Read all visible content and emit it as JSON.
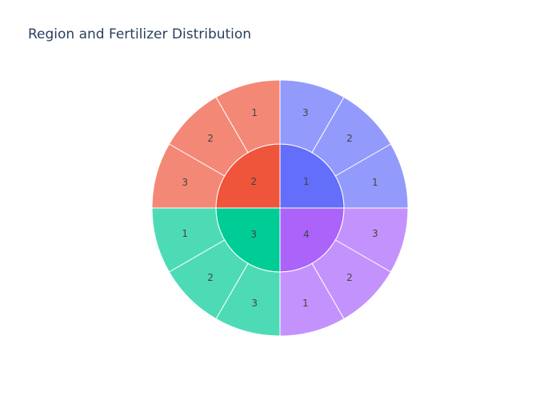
{
  "chart_data": {
    "type": "sunburst",
    "title": "Region and Fertilizer Distribution",
    "regions": [
      {
        "label": "1",
        "color": "#636efa",
        "children": [
          {
            "label": "3",
            "value": 1
          },
          {
            "label": "2",
            "value": 1
          },
          {
            "label": "1",
            "value": 1
          }
        ]
      },
      {
        "label": "4",
        "color": "#ab63fa",
        "children": [
          {
            "label": "3",
            "value": 1
          },
          {
            "label": "2",
            "value": 1
          },
          {
            "label": "1",
            "value": 1
          }
        ]
      },
      {
        "label": "3",
        "color": "#00cc96",
        "children": [
          {
            "label": "3",
            "value": 1
          },
          {
            "label": "2",
            "value": 1
          },
          {
            "label": "1",
            "value": 1
          }
        ]
      },
      {
        "label": "2",
        "color": "#ef553b",
        "children": [
          {
            "label": "3",
            "value": 1
          },
          {
            "label": "2",
            "value": 1
          },
          {
            "label": "1",
            "value": 1
          }
        ]
      }
    ]
  }
}
